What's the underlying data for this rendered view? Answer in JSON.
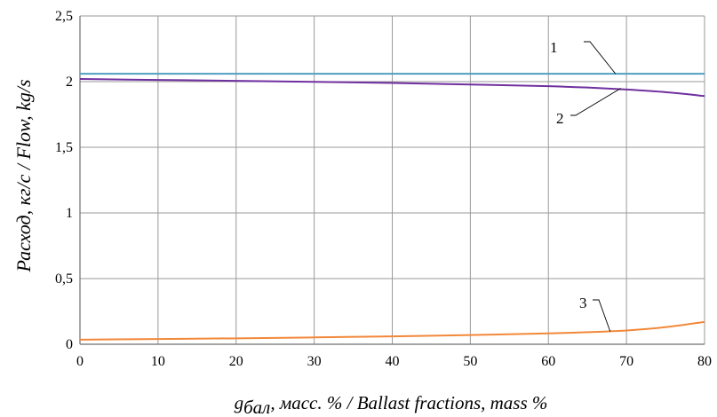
{
  "chart_data": {
    "type": "line",
    "xlabel_parts": {
      "symbol": "g",
      "subscript": "бал",
      "ru": ", масс. %",
      "sep": " / ",
      "en": "Ballast fractions, mass %"
    },
    "ylabel": "Расход, кг/с / Flow, kg/s",
    "xlim": [
      0,
      80
    ],
    "ylim": [
      0,
      2.5
    ],
    "x_ticks": [
      0,
      10,
      20,
      30,
      40,
      50,
      60,
      70,
      80
    ],
    "y_ticks": [
      0,
      0.5,
      1,
      1.5,
      2,
      2.5
    ],
    "y_tick_labels": [
      "0",
      "0,5",
      "1",
      "1,5",
      "2",
      "2,5"
    ],
    "grid": true,
    "series": [
      {
        "label": "1",
        "color": "#4F9FC0",
        "x": [
          0,
          10,
          20,
          30,
          40,
          50,
          60,
          70,
          80
        ],
        "y": [
          2.06,
          2.06,
          2.06,
          2.06,
          2.06,
          2.06,
          2.06,
          2.06,
          2.06
        ]
      },
      {
        "label": "2",
        "color": "#7030A0",
        "x": [
          0,
          10,
          20,
          30,
          40,
          50,
          60,
          65,
          70,
          75,
          80
        ],
        "y": [
          2.02,
          2.013,
          2.006,
          1.998,
          1.99,
          1.978,
          1.965,
          1.955,
          1.94,
          1.92,
          1.89
        ]
      },
      {
        "label": "3",
        "color": "#F2883A",
        "x": [
          0,
          10,
          20,
          30,
          40,
          50,
          60,
          65,
          70,
          75,
          80
        ],
        "y": [
          0.035,
          0.04,
          0.045,
          0.052,
          0.06,
          0.07,
          0.083,
          0.092,
          0.105,
          0.13,
          0.17
        ]
      }
    ]
  }
}
